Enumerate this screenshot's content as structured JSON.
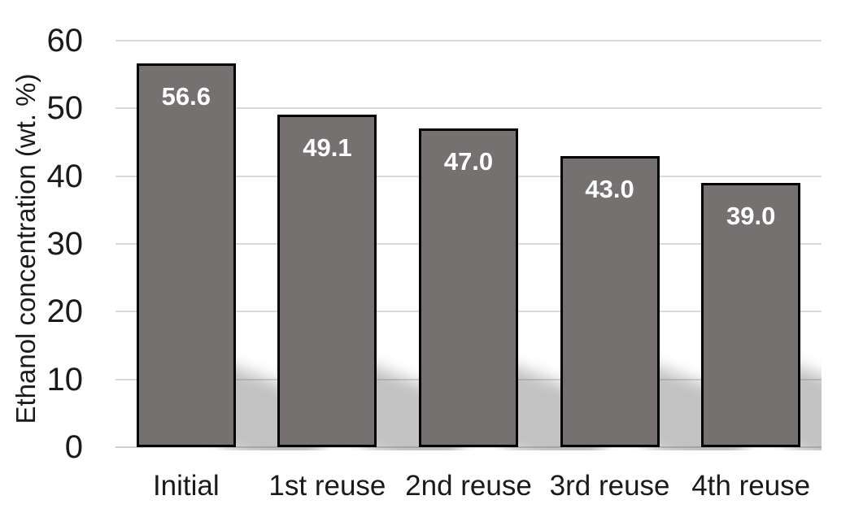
{
  "chart_data": {
    "type": "bar",
    "title": "",
    "xlabel": "",
    "ylabel": "Ethanol concentration (wt. %)",
    "categories": [
      "Initial",
      "1st reuse",
      "2nd reuse",
      "3rd reuse",
      "4th reuse"
    ],
    "values": [
      56.6,
      49.1,
      47.0,
      43.0,
      39.0
    ],
    "value_labels": [
      "56.6",
      "49.1",
      "47.0",
      "43.0",
      "39.0"
    ],
    "ylim": [
      0,
      60
    ],
    "yticks": [
      0,
      10,
      20,
      30,
      40,
      50,
      60
    ],
    "ytick_labels": [
      "0",
      "10",
      "20",
      "30",
      "40",
      "50",
      "60"
    ],
    "grid": true,
    "legend": "none",
    "colors": {
      "bar_fill": "#757170",
      "bar_border": "#000000",
      "value_label": "#ffffff",
      "gridline": "#d9d9d9",
      "axis_text": "#1a1a1a",
      "background": "#ffffff"
    },
    "effects": {
      "bar_shadow": "perspective-diagonal-lower-right"
    }
  }
}
